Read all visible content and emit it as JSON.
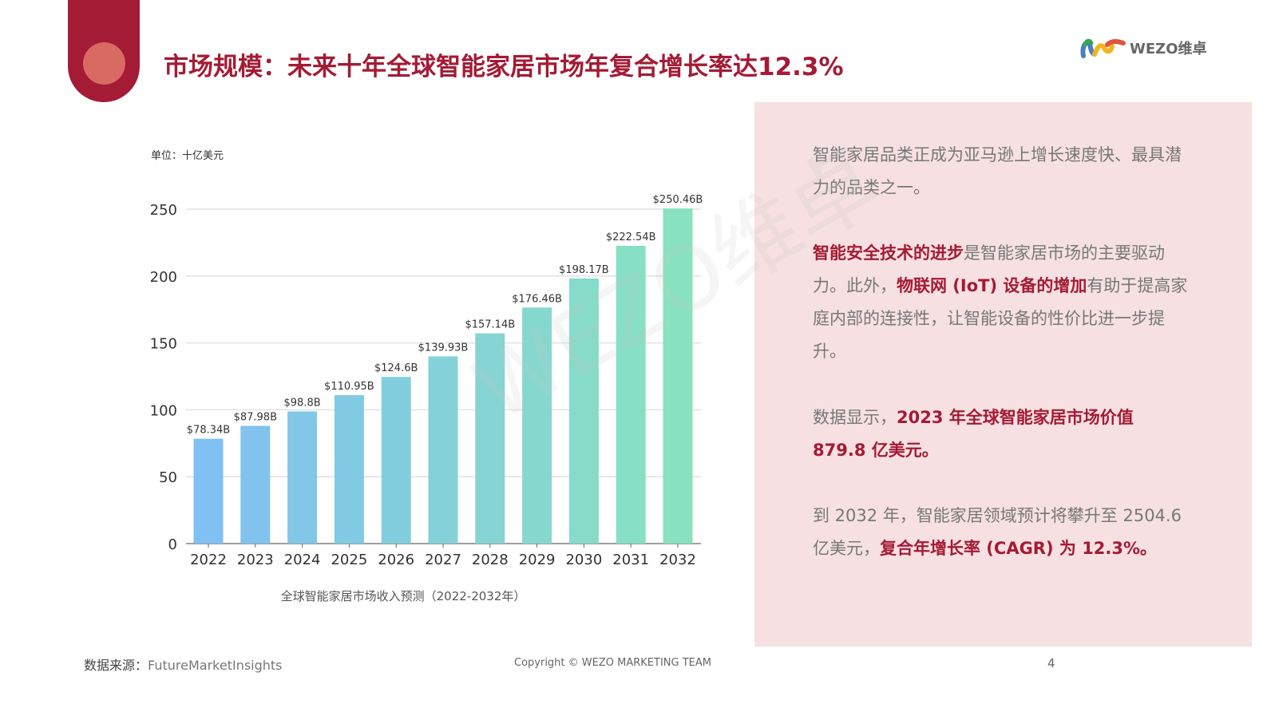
{
  "header": {
    "title": "市场规模：未来十年全球智能家居市场年复合增长率达12.3%",
    "logo_text": "WEZO维卓"
  },
  "watermark": "WEZO维卓",
  "colors": {
    "brand": "#a31b35",
    "panel": "#f6e0e1",
    "bar_start": "#80c0f2",
    "bar_end": "#88e2bf"
  },
  "chart_data": {
    "type": "bar",
    "unit_label": "单位：十亿美元",
    "categories": [
      "2022",
      "2023",
      "2024",
      "2025",
      "2026",
      "2027",
      "2028",
      "2029",
      "2030",
      "2031",
      "2032"
    ],
    "values": [
      78.34,
      87.98,
      98.8,
      110.95,
      124.6,
      139.93,
      157.14,
      176.46,
      198.17,
      222.54,
      250.46
    ],
    "data_labels": [
      "$78.34B",
      "$87.98B",
      "$98.8B",
      "$110.95B",
      "$124.6B",
      "$139.93B",
      "$157.14B",
      "$176.46B",
      "$198.17B",
      "$222.54B",
      "$250.46B"
    ],
    "yticks": [
      0,
      50,
      100,
      150,
      200,
      250
    ],
    "ylim": [
      0,
      250
    ],
    "grid": true,
    "xlabel": "全球智能家居市场收入预测（2022-2032年）"
  },
  "panel": {
    "p1": "智能家居品类正成为亚马逊上增长速度快、最具潜力的品类之一。",
    "p2a": "智能安全技术的进步",
    "p2b": "是智能家居市场的主要驱动力。此外，",
    "p2c": "物联网 (IoT) 设备的增加",
    "p2d": "有助于提高家庭内部的连接性，让智能设备的性价比进一步提升。",
    "p3a": "数据显示，",
    "p3b": "2023 年全球智能家居市场价值 879.8 亿美元。",
    "p4a": "到 2032 年，智能家居领域预计将攀升至 2504.6 亿美元，",
    "p4b": "复合年增长率 (CAGR) 为 12.3%。"
  },
  "footer": {
    "source_label": "数据来源：",
    "source_value": "FutureMarketInsights",
    "copyright": "Copyright © WEZO MARKETING TEAM",
    "page": "4"
  }
}
